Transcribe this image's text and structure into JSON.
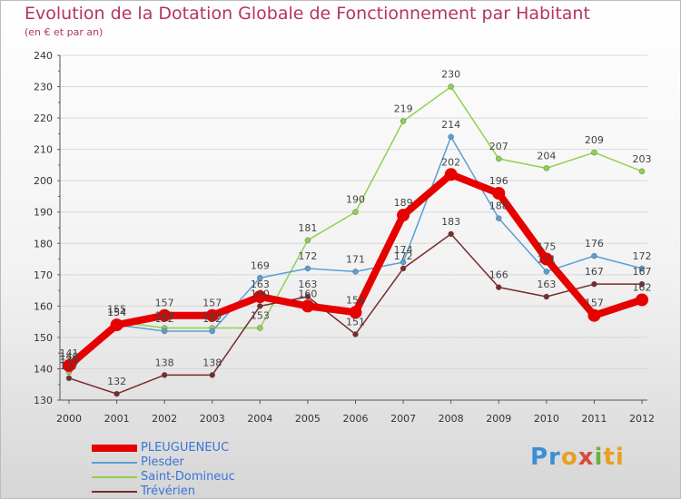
{
  "chart_data": {
    "type": "line",
    "title": "Evolution de la Dotation Globale de Fonctionnement par Habitant",
    "subtitle": "(en € et par an)",
    "xlabel": "",
    "ylabel": "",
    "ylim": [
      130,
      240
    ],
    "yticks": [
      130,
      140,
      150,
      160,
      170,
      180,
      190,
      200,
      210,
      220,
      230,
      240
    ],
    "categories": [
      "2000",
      "2001",
      "2002",
      "2003",
      "2004",
      "2005",
      "2006",
      "2007",
      "2008",
      "2009",
      "2010",
      "2011",
      "2012"
    ],
    "legend_position": "bottom-left",
    "series": [
      {
        "name": "Saint-Domineuc",
        "color": "#8fd14f",
        "values": [
          139,
          155,
          153,
          153,
          153,
          181,
          190,
          219,
          230,
          207,
          204,
          209,
          203
        ]
      },
      {
        "name": "Plesder",
        "color": "#5a9fd4",
        "values": [
          140,
          154,
          152,
          152,
          169,
          172,
          171,
          174,
          214,
          188,
          171,
          176,
          172
        ]
      },
      {
        "name": "Trévérien",
        "color": "#7a2a2a",
        "values": [
          137,
          132,
          138,
          138,
          160,
          163,
          151,
          172,
          183,
          166,
          163,
          167,
          167
        ]
      },
      {
        "name": "PLEUGUENEUC",
        "color": "#e60000",
        "values": [
          141,
          154,
          157,
          157,
          163,
          160,
          158,
          189,
          202,
          196,
          175,
          157,
          162
        ]
      }
    ],
    "legend_order": [
      "PLEUGUENEUC",
      "Plesder",
      "Saint-Domineuc",
      "Trévérien"
    ]
  },
  "logo_text": "Proxiti"
}
